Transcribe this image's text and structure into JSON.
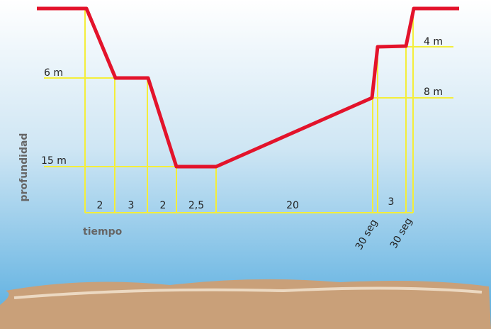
{
  "axes": {
    "y_label": "profundidad",
    "x_label": "tiempo"
  },
  "depths": [
    "6 m",
    "15 m",
    "4 m",
    "8 m"
  ],
  "durations": [
    "2",
    "3",
    "2",
    "2,5",
    "20",
    "3",
    "30 seg",
    "30 seg"
  ]
}
